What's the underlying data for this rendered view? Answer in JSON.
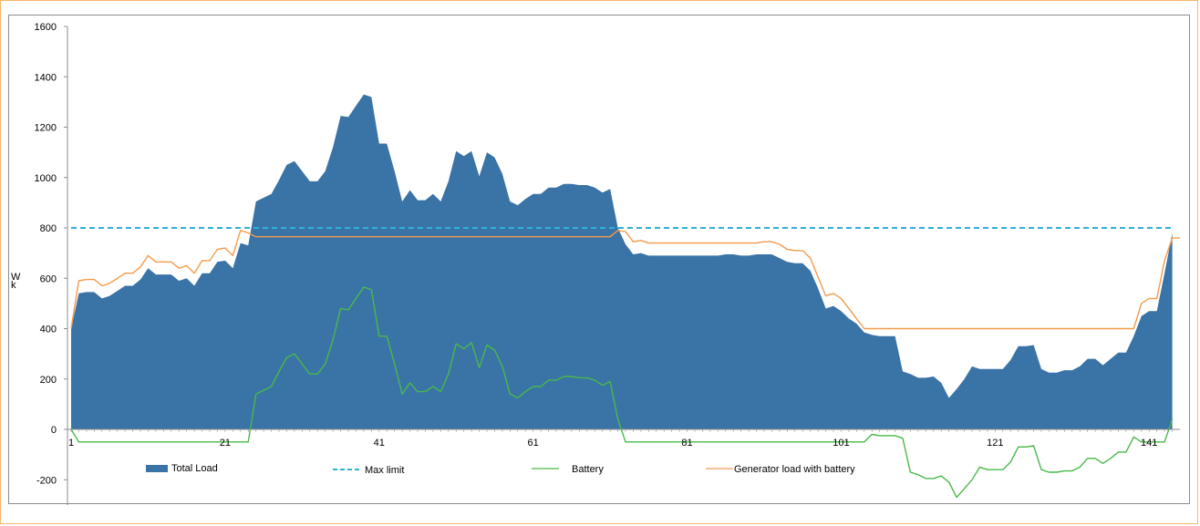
{
  "chart_data": {
    "type": "area",
    "title": "",
    "xlabel": "",
    "ylabel": "kW",
    "xlim": [
      1,
      144
    ],
    "ylim": [
      -300,
      1600
    ],
    "yticks": [
      -200,
      0,
      200,
      400,
      600,
      800,
      1000,
      1200,
      1400,
      1600
    ],
    "xticks": [
      1,
      21,
      41,
      61,
      81,
      101,
      121,
      141
    ],
    "grid": false,
    "legend_position": "bottom",
    "series": [
      {
        "name": "Total Load",
        "style": "area",
        "color": "#3a73a6",
        "points": [
          [
            1,
            400
          ],
          [
            2,
            540
          ],
          [
            3,
            545
          ],
          [
            4,
            545
          ],
          [
            5,
            520
          ],
          [
            6,
            530
          ],
          [
            7,
            550
          ],
          [
            8,
            570
          ],
          [
            9,
            570
          ],
          [
            10,
            595
          ],
          [
            11,
            640
          ],
          [
            12,
            615
          ],
          [
            13,
            615
          ],
          [
            14,
            615
          ],
          [
            15,
            590
          ],
          [
            16,
            600
          ],
          [
            17,
            570
          ],
          [
            18,
            620
          ],
          [
            19,
            620
          ],
          [
            20,
            665
          ],
          [
            21,
            670
          ],
          [
            22,
            640
          ],
          [
            23,
            740
          ],
          [
            24,
            730
          ],
          [
            25,
            905
          ],
          [
            26,
            920
          ],
          [
            27,
            935
          ],
          [
            28,
            990
          ],
          [
            29,
            1050
          ],
          [
            30,
            1065
          ],
          [
            31,
            1025
          ],
          [
            32,
            985
          ],
          [
            33,
            985
          ],
          [
            34,
            1025
          ],
          [
            35,
            1120
          ],
          [
            36,
            1245
          ],
          [
            37,
            1240
          ],
          [
            38,
            1285
          ],
          [
            39,
            1330
          ],
          [
            40,
            1320
          ],
          [
            41,
            1135
          ],
          [
            42,
            1135
          ],
          [
            43,
            1025
          ],
          [
            44,
            905
          ],
          [
            45,
            950
          ],
          [
            46,
            910
          ],
          [
            47,
            910
          ],
          [
            48,
            935
          ],
          [
            49,
            905
          ],
          [
            50,
            985
          ],
          [
            51,
            1105
          ],
          [
            52,
            1085
          ],
          [
            53,
            1105
          ],
          [
            54,
            1005
          ],
          [
            55,
            1100
          ],
          [
            56,
            1080
          ],
          [
            57,
            1015
          ],
          [
            58,
            905
          ],
          [
            59,
            890
          ],
          [
            60,
            915
          ],
          [
            61,
            935
          ],
          [
            62,
            935
          ],
          [
            63,
            960
          ],
          [
            64,
            960
          ],
          [
            65,
            975
          ],
          [
            66,
            975
          ],
          [
            67,
            970
          ],
          [
            68,
            970
          ],
          [
            69,
            960
          ],
          [
            70,
            940
          ],
          [
            71,
            955
          ],
          [
            72,
            800
          ],
          [
            73,
            735
          ],
          [
            74,
            695
          ],
          [
            75,
            700
          ],
          [
            76,
            690
          ],
          [
            77,
            690
          ],
          [
            78,
            690
          ],
          [
            79,
            690
          ],
          [
            80,
            690
          ],
          [
            81,
            690
          ],
          [
            82,
            690
          ],
          [
            83,
            690
          ],
          [
            84,
            690
          ],
          [
            85,
            690
          ],
          [
            86,
            695
          ],
          [
            87,
            695
          ],
          [
            88,
            690
          ],
          [
            89,
            690
          ],
          [
            90,
            695
          ],
          [
            91,
            695
          ],
          [
            92,
            695
          ],
          [
            93,
            680
          ],
          [
            94,
            665
          ],
          [
            95,
            660
          ],
          [
            96,
            660
          ],
          [
            97,
            630
          ],
          [
            98,
            560
          ],
          [
            99,
            480
          ],
          [
            100,
            490
          ],
          [
            101,
            470
          ],
          [
            102,
            440
          ],
          [
            103,
            420
          ],
          [
            104,
            385
          ],
          [
            105,
            375
          ],
          [
            106,
            370
          ],
          [
            107,
            370
          ],
          [
            108,
            370
          ],
          [
            109,
            230
          ],
          [
            110,
            220
          ],
          [
            111,
            205
          ],
          [
            112,
            205
          ],
          [
            113,
            210
          ],
          [
            114,
            185
          ],
          [
            115,
            125
          ],
          [
            116,
            160
          ],
          [
            117,
            200
          ],
          [
            118,
            250
          ],
          [
            119,
            240
          ],
          [
            120,
            240
          ],
          [
            121,
            240
          ],
          [
            122,
            240
          ],
          [
            123,
            275
          ],
          [
            124,
            330
          ],
          [
            125,
            330
          ],
          [
            126,
            335
          ],
          [
            127,
            240
          ],
          [
            128,
            225
          ],
          [
            129,
            225
          ],
          [
            130,
            235
          ],
          [
            131,
            235
          ],
          [
            132,
            250
          ],
          [
            133,
            280
          ],
          [
            134,
            280
          ],
          [
            135,
            255
          ],
          [
            136,
            280
          ],
          [
            137,
            305
          ],
          [
            138,
            305
          ],
          [
            139,
            370
          ],
          [
            140,
            450
          ],
          [
            141,
            470
          ],
          [
            142,
            470
          ],
          [
            143,
            620
          ],
          [
            144,
            780
          ]
        ]
      },
      {
        "name": "Max limit",
        "style": "dashed",
        "color": "#2fb1d6",
        "points": [
          [
            1,
            800
          ],
          [
            144,
            800
          ]
        ]
      },
      {
        "name": "Battery",
        "style": "line",
        "color": "#49b94a",
        "points": [
          [
            1,
            0
          ],
          [
            2,
            -50
          ],
          [
            3,
            -50
          ],
          [
            24,
            -50
          ],
          [
            25,
            140
          ],
          [
            26,
            155
          ],
          [
            27,
            170
          ],
          [
            28,
            230
          ],
          [
            29,
            285
          ],
          [
            30,
            300
          ],
          [
            31,
            260
          ],
          [
            32,
            220
          ],
          [
            33,
            220
          ],
          [
            34,
            260
          ],
          [
            35,
            355
          ],
          [
            36,
            480
          ],
          [
            37,
            475
          ],
          [
            38,
            520
          ],
          [
            39,
            565
          ],
          [
            40,
            555
          ],
          [
            41,
            370
          ],
          [
            42,
            370
          ],
          [
            43,
            260
          ],
          [
            44,
            140
          ],
          [
            45,
            185
          ],
          [
            46,
            150
          ],
          [
            47,
            150
          ],
          [
            48,
            170
          ],
          [
            49,
            150
          ],
          [
            50,
            220
          ],
          [
            51,
            340
          ],
          [
            52,
            320
          ],
          [
            53,
            345
          ],
          [
            54,
            245
          ],
          [
            55,
            335
          ],
          [
            56,
            315
          ],
          [
            57,
            250
          ],
          [
            58,
            140
          ],
          [
            59,
            125
          ],
          [
            60,
            150
          ],
          [
            61,
            170
          ],
          [
            62,
            170
          ],
          [
            63,
            195
          ],
          [
            64,
            195
          ],
          [
            65,
            210
          ],
          [
            66,
            210
          ],
          [
            67,
            205
          ],
          [
            68,
            205
          ],
          [
            69,
            195
          ],
          [
            70,
            175
          ],
          [
            71,
            190
          ],
          [
            72,
            40
          ],
          [
            73,
            -50
          ],
          [
            104,
            -50
          ],
          [
            105,
            -20
          ],
          [
            106,
            -25
          ],
          [
            107,
            -25
          ],
          [
            108,
            -25
          ],
          [
            109,
            -35
          ],
          [
            110,
            -170
          ],
          [
            111,
            -180
          ],
          [
            112,
            -195
          ],
          [
            113,
            -195
          ],
          [
            114,
            -185
          ],
          [
            115,
            -210
          ],
          [
            116,
            -270
          ],
          [
            117,
            -235
          ],
          [
            118,
            -200
          ],
          [
            119,
            -150
          ],
          [
            120,
            -160
          ],
          [
            121,
            -160
          ],
          [
            122,
            -160
          ],
          [
            123,
            -130
          ],
          [
            124,
            -70
          ],
          [
            125,
            -70
          ],
          [
            126,
            -65
          ],
          [
            127,
            -160
          ],
          [
            128,
            -170
          ],
          [
            129,
            -170
          ],
          [
            130,
            -165
          ],
          [
            131,
            -165
          ],
          [
            132,
            -150
          ],
          [
            133,
            -115
          ],
          [
            134,
            -115
          ],
          [
            135,
            -135
          ],
          [
            136,
            -115
          ],
          [
            137,
            -90
          ],
          [
            138,
            -90
          ],
          [
            139,
            -30
          ],
          [
            140,
            -50
          ],
          [
            141,
            -50
          ],
          [
            142,
            -50
          ],
          [
            143,
            -50
          ],
          [
            144,
            40
          ]
        ]
      },
      {
        "name": "Generator load with battery",
        "style": "line",
        "color": "#f39b4c",
        "points": [
          [
            1,
            400
          ],
          [
            2,
            590
          ],
          [
            3,
            595
          ],
          [
            4,
            595
          ],
          [
            5,
            570
          ],
          [
            6,
            580
          ],
          [
            7,
            600
          ],
          [
            8,
            620
          ],
          [
            9,
            620
          ],
          [
            10,
            645
          ],
          [
            11,
            690
          ],
          [
            12,
            665
          ],
          [
            13,
            665
          ],
          [
            14,
            665
          ],
          [
            15,
            640
          ],
          [
            16,
            650
          ],
          [
            17,
            620
          ],
          [
            18,
            670
          ],
          [
            19,
            670
          ],
          [
            20,
            715
          ],
          [
            21,
            720
          ],
          [
            22,
            690
          ],
          [
            23,
            790
          ],
          [
            24,
            780
          ],
          [
            25,
            765
          ],
          [
            71,
            765
          ],
          [
            72,
            790
          ],
          [
            73,
            785
          ],
          [
            74,
            745
          ],
          [
            75,
            750
          ],
          [
            76,
            740
          ],
          [
            90,
            740
          ],
          [
            91,
            745
          ],
          [
            92,
            745
          ],
          [
            93,
            735
          ],
          [
            94,
            715
          ],
          [
            95,
            710
          ],
          [
            96,
            710
          ],
          [
            97,
            680
          ],
          [
            98,
            605
          ],
          [
            99,
            530
          ],
          [
            100,
            540
          ],
          [
            101,
            520
          ],
          [
            102,
            480
          ],
          [
            103,
            440
          ],
          [
            104,
            400
          ],
          [
            139,
            400
          ],
          [
            140,
            500
          ],
          [
            141,
            520
          ],
          [
            142,
            520
          ],
          [
            143,
            670
          ],
          [
            144,
            760
          ],
          [
            145,
            760
          ]
        ]
      }
    ]
  },
  "legend": {
    "total_load": "Total Load",
    "max_limit": "Max limit",
    "battery": "Battery",
    "generator": "Generator load with battery"
  },
  "axis": {
    "y_unit_label": "W\nk"
  }
}
